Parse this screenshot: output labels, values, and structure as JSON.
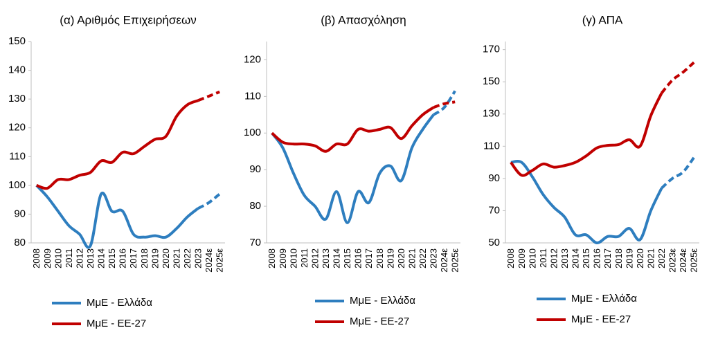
{
  "chart_data": [
    {
      "type": "line",
      "title": "(α) Αριθμός Επιχειρήσεων",
      "categories": [
        "2008",
        "2009",
        "2010",
        "2011",
        "2012",
        "2013",
        "2014",
        "2015",
        "2016",
        "2017",
        "2018",
        "2019",
        "2020",
        "2021",
        "2022",
        "2023",
        "2024ε",
        "2025ε"
      ],
      "series": [
        {
          "name": "ΜμΕ - Ελλάδα",
          "color": "#2e7ebf",
          "values": [
            100,
            96,
            91,
            86,
            83,
            79,
            97,
            91,
            91,
            83,
            82,
            82.5,
            82,
            85,
            89,
            92,
            94,
            97
          ]
        },
        {
          "name": "ΜμΕ - ΕΕ-27",
          "color": "#c00000",
          "values": [
            100,
            99,
            102,
            102,
            103.5,
            104.5,
            108.5,
            108,
            111.5,
            111,
            113.5,
            116,
            117,
            124,
            128,
            129.5,
            131,
            132.5
          ]
        }
      ],
      "ylim": [
        80,
        150
      ],
      "yticks": [
        80,
        90,
        100,
        110,
        120,
        130,
        140,
        150
      ]
    },
    {
      "type": "line",
      "title": "(β) Απασχόληση",
      "categories": [
        "2008",
        "2009",
        "2010",
        "2011",
        "2012",
        "2013",
        "2014",
        "2015",
        "2016",
        "2017",
        "2018",
        "2019",
        "2020",
        "2021",
        "2022",
        "2023",
        "2024ε",
        "2025ε"
      ],
      "series": [
        {
          "name": "ΜμΕ - Ελλάδα",
          "color": "#2e7ebf",
          "values": [
            100,
            96,
            89,
            83,
            80,
            76.5,
            84,
            75.5,
            84,
            81,
            89,
            91,
            87,
            96,
            101,
            105,
            107,
            111.5
          ]
        },
        {
          "name": "ΜμΕ - ΕΕ-27",
          "color": "#c00000",
          "values": [
            100,
            97.5,
            97,
            97,
            96.5,
            95,
            97,
            97,
            101,
            100.5,
            101,
            101.5,
            98.5,
            102,
            105,
            107,
            108,
            108.5
          ]
        }
      ],
      "ylim": [
        70,
        125
      ],
      "yticks": [
        70,
        80,
        90,
        100,
        110,
        120
      ]
    },
    {
      "type": "line",
      "title": "(γ) ΑΠΑ",
      "categories": [
        "2008",
        "2009",
        "2010",
        "2011",
        "2012",
        "2013",
        "2014",
        "2015",
        "2016",
        "2017",
        "2018",
        "2019",
        "2020",
        "2021",
        "2022",
        "2023ε",
        "2024ε",
        "2025ε"
      ],
      "series": [
        {
          "name": "ΜμΕ - Ελλάδα",
          "color": "#2e7ebf",
          "values": [
            100,
            100,
            91,
            80,
            72,
            66,
            55,
            55,
            50,
            54,
            54,
            59,
            52,
            70,
            84,
            90,
            94,
            103
          ]
        },
        {
          "name": "ΜμΕ - ΕΕ-27",
          "color": "#c00000",
          "values": [
            100,
            92,
            95,
            99,
            97,
            98,
            100,
            104,
            109,
            110.5,
            111,
            114,
            110,
            129,
            143,
            151,
            156,
            162
          ]
        }
      ],
      "ylim": [
        50,
        175
      ],
      "yticks": [
        50,
        70,
        90,
        110,
        130,
        150,
        170
      ]
    }
  ]
}
